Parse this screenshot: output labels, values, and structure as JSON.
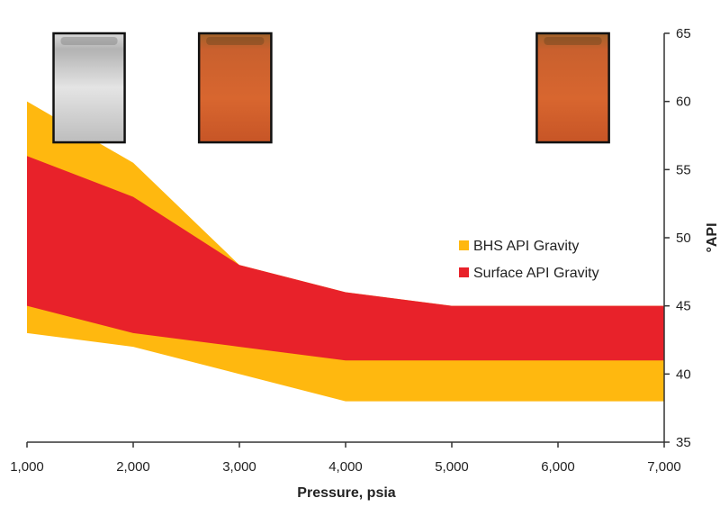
{
  "chart_data": {
    "type": "area",
    "xlabel": "Pressure, psia",
    "ylabel": "°API",
    "xlim": [
      1000,
      7000
    ],
    "ylim": [
      35,
      65
    ],
    "x_ticks": [
      "1,000",
      "2,000",
      "3,000",
      "4,000",
      "5,000",
      "6,000",
      "7,000"
    ],
    "y_ticks": [
      "35",
      "40",
      "45",
      "50",
      "55",
      "60",
      "65"
    ],
    "y_axis_side": "right",
    "grid": false,
    "legend_position": "center-right",
    "series": [
      {
        "name": "BHS API Gravity",
        "color": "#FFB80F",
        "x": [
          1000,
          2000,
          3000,
          4000,
          5000,
          6000,
          7000
        ],
        "upper": [
          60,
          55.5,
          48,
          46,
          45,
          45,
          45
        ],
        "lower": [
          43,
          42,
          40,
          38,
          38,
          38,
          38
        ]
      },
      {
        "name": "Surface API Gravity",
        "color": "#E8222A",
        "x": [
          1000,
          2000,
          3000,
          4000,
          5000,
          6000,
          7000
        ],
        "upper": [
          56,
          53,
          48,
          46,
          45,
          45,
          45
        ],
        "lower": [
          45,
          43,
          42,
          41,
          41,
          41,
          41
        ]
      }
    ],
    "sample_photos": [
      {
        "name": "clear-sample",
        "x_range": [
          1250,
          1920
        ],
        "y_range": [
          57,
          65
        ],
        "tone": "gray"
      },
      {
        "name": "orange-sample-1",
        "x_range": [
          2620,
          3300
        ],
        "y_range": [
          57,
          65
        ],
        "tone": "orange"
      },
      {
        "name": "orange-sample-2",
        "x_range": [
          5800,
          6480
        ],
        "y_range": [
          57,
          65
        ],
        "tone": "orange"
      }
    ]
  }
}
